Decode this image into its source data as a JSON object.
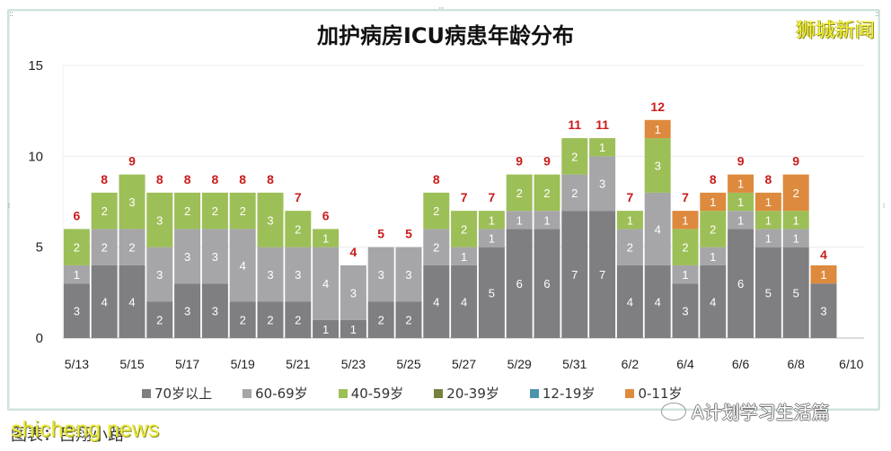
{
  "header": {
    "title": "加护病房ICU病患年龄分布",
    "brand": "狮城新闻"
  },
  "footer": {
    "credit": "图表：吕翔小路",
    "watermark_left": "shicheng news",
    "watermark_right": "A计划学习生活篇"
  },
  "colors": {
    "age70plus": "#7f7e80",
    "age60_69": "#a6a6a8",
    "age40_59": "#9dbf57",
    "age20_39": "#77813d",
    "age12_19": "#4a95aa",
    "age0_11": "#de8a3e",
    "total_label": "#cc1b1b"
  },
  "chart_data": {
    "type": "bar",
    "stacked": true,
    "title": "加护病房ICU病患年龄分布",
    "xlabel": "",
    "ylabel": "",
    "ylim": [
      0,
      15
    ],
    "yticks": [
      0,
      5,
      10,
      15
    ],
    "grid": true,
    "legend_position": "bottom",
    "categories": [
      "5/13",
      "5/14",
      "5/15",
      "5/16",
      "5/17",
      "5/18",
      "5/19",
      "5/20",
      "5/21",
      "5/22",
      "5/23",
      "5/24",
      "5/25",
      "5/26",
      "5/27",
      "5/28",
      "5/29",
      "5/30",
      "5/31",
      "6/1",
      "6/2",
      "6/3",
      "6/4",
      "6/5",
      "6/6",
      "6/7",
      "6/8",
      "6/9"
    ],
    "xtick_labels": [
      "5/13",
      "5/15",
      "5/17",
      "5/19",
      "5/21",
      "5/23",
      "5/25",
      "5/27",
      "5/29",
      "5/31",
      "6/2",
      "6/4",
      "6/6",
      "6/8",
      "6/10"
    ],
    "series": [
      {
        "name": "70岁以上",
        "key": "age70plus",
        "values": [
          3,
          4,
          4,
          2,
          3,
          3,
          2,
          2,
          2,
          1,
          1,
          2,
          2,
          4,
          4,
          5,
          6,
          6,
          7,
          7,
          4,
          4,
          3,
          4,
          6,
          5,
          5,
          3
        ]
      },
      {
        "name": "60-69岁",
        "key": "age60_69",
        "values": [
          1,
          2,
          2,
          3,
          3,
          3,
          4,
          3,
          3,
          4,
          3,
          3,
          3,
          2,
          1,
          1,
          1,
          1,
          2,
          3,
          2,
          4,
          1,
          1,
          1,
          1,
          1,
          0
        ]
      },
      {
        "name": "40-59岁",
        "key": "age40_59",
        "values": [
          2,
          2,
          3,
          3,
          2,
          2,
          2,
          3,
          2,
          1,
          0,
          0,
          0,
          2,
          2,
          1,
          2,
          2,
          2,
          1,
          1,
          3,
          2,
          2,
          1,
          1,
          1,
          0
        ]
      },
      {
        "name": "20-39岁",
        "key": "age20_39",
        "values": [
          0,
          0,
          0,
          0,
          0,
          0,
          0,
          0,
          0,
          0,
          0,
          0,
          0,
          0,
          0,
          0,
          0,
          0,
          0,
          0,
          0,
          0,
          0,
          0,
          0,
          0,
          0,
          0
        ]
      },
      {
        "name": "12-19岁",
        "key": "age12_19",
        "values": [
          0,
          0,
          0,
          0,
          0,
          0,
          0,
          0,
          0,
          0,
          0,
          0,
          0,
          0,
          0,
          0,
          0,
          0,
          0,
          0,
          0,
          0,
          0,
          0,
          0,
          0,
          0,
          0
        ]
      },
      {
        "name": "0-11岁",
        "key": "age0_11",
        "values": [
          0,
          0,
          0,
          0,
          0,
          0,
          0,
          0,
          0,
          0,
          0,
          0,
          0,
          0,
          0,
          0,
          0,
          0,
          0,
          0,
          0,
          1,
          1,
          1,
          1,
          1,
          2,
          1
        ]
      }
    ],
    "totals": [
      6,
      8,
      9,
      8,
      8,
      8,
      8,
      8,
      7,
      6,
      4,
      5,
      5,
      8,
      7,
      7,
      9,
      9,
      11,
      11,
      7,
      12,
      7,
      8,
      9,
      8,
      9,
      4
    ]
  }
}
